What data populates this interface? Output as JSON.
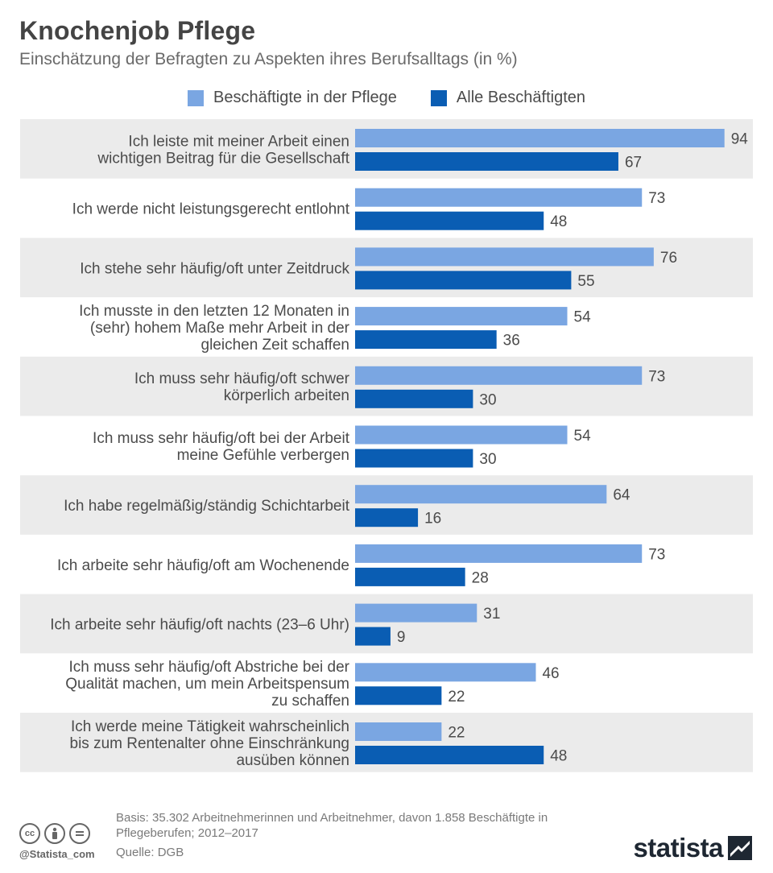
{
  "title": "Knochenjob Pflege",
  "subtitle": "Einschätzung der Befragten zu Aspekten ihres Berufsalltags (in %)",
  "colors": {
    "pflege": "#7aa6e2",
    "alle": "#0a5db3",
    "row_band": "#ebebeb",
    "label_text": "#4b4b4b"
  },
  "chart_data": {
    "type": "bar",
    "orientation": "horizontal",
    "categories": [
      [
        "Ich leiste mit meiner Arbeit einen",
        "wichtigen Beitrag für die Gesellschaft"
      ],
      [
        "Ich werde nicht leistungsgerecht entlohnt"
      ],
      [
        "Ich stehe sehr häufig/oft unter Zeitdruck"
      ],
      [
        "Ich musste in den letzten 12 Monaten in",
        "(sehr) hohem Maße mehr Arbeit in der",
        "gleichen Zeit schaffen"
      ],
      [
        "Ich muss sehr häufig/oft schwer",
        "körperlich arbeiten"
      ],
      [
        "Ich muss sehr häufig/oft bei der Arbeit",
        "meine Gefühle verbergen"
      ],
      [
        "Ich habe regelmäßig/ständig Schichtarbeit"
      ],
      [
        "Ich arbeite sehr häufig/oft am Wochenende"
      ],
      [
        "Ich arbeite sehr häufig/oft nachts (23–6 Uhr)"
      ],
      [
        "Ich muss sehr häufig/oft Abstriche bei der",
        "Qualität machen, um mein Arbeitspensum",
        "zu schaffen"
      ],
      [
        "Ich werde meine Tätigkeit wahrscheinlich",
        "bis zum Rentenalter ohne Einschränkung",
        "ausüben können"
      ]
    ],
    "series": [
      {
        "name": "Beschäftigte in der Pflege",
        "values": [
          94,
          73,
          76,
          54,
          73,
          54,
          64,
          73,
          31,
          46,
          22
        ]
      },
      {
        "name": "Alle Beschäftigten",
        "values": [
          67,
          48,
          55,
          36,
          30,
          30,
          16,
          28,
          9,
          22,
          48
        ]
      }
    ],
    "xlim": [
      0,
      100
    ],
    "legend": "top-center",
    "grid": false,
    "data_labels": true
  },
  "footer": {
    "basis": "Basis: 35.302 Arbeitnehmerinnen und Arbeitnehmer, davon 1.858 Beschäftigte in Pflegeberufen; 2012–2017",
    "source": "Quelle: DGB",
    "handle": "@Statista_com",
    "brand": "statista"
  },
  "icons": [
    "cc-icon",
    "attribution-icon",
    "no-derivatives-icon",
    "statista-logo-icon"
  ]
}
